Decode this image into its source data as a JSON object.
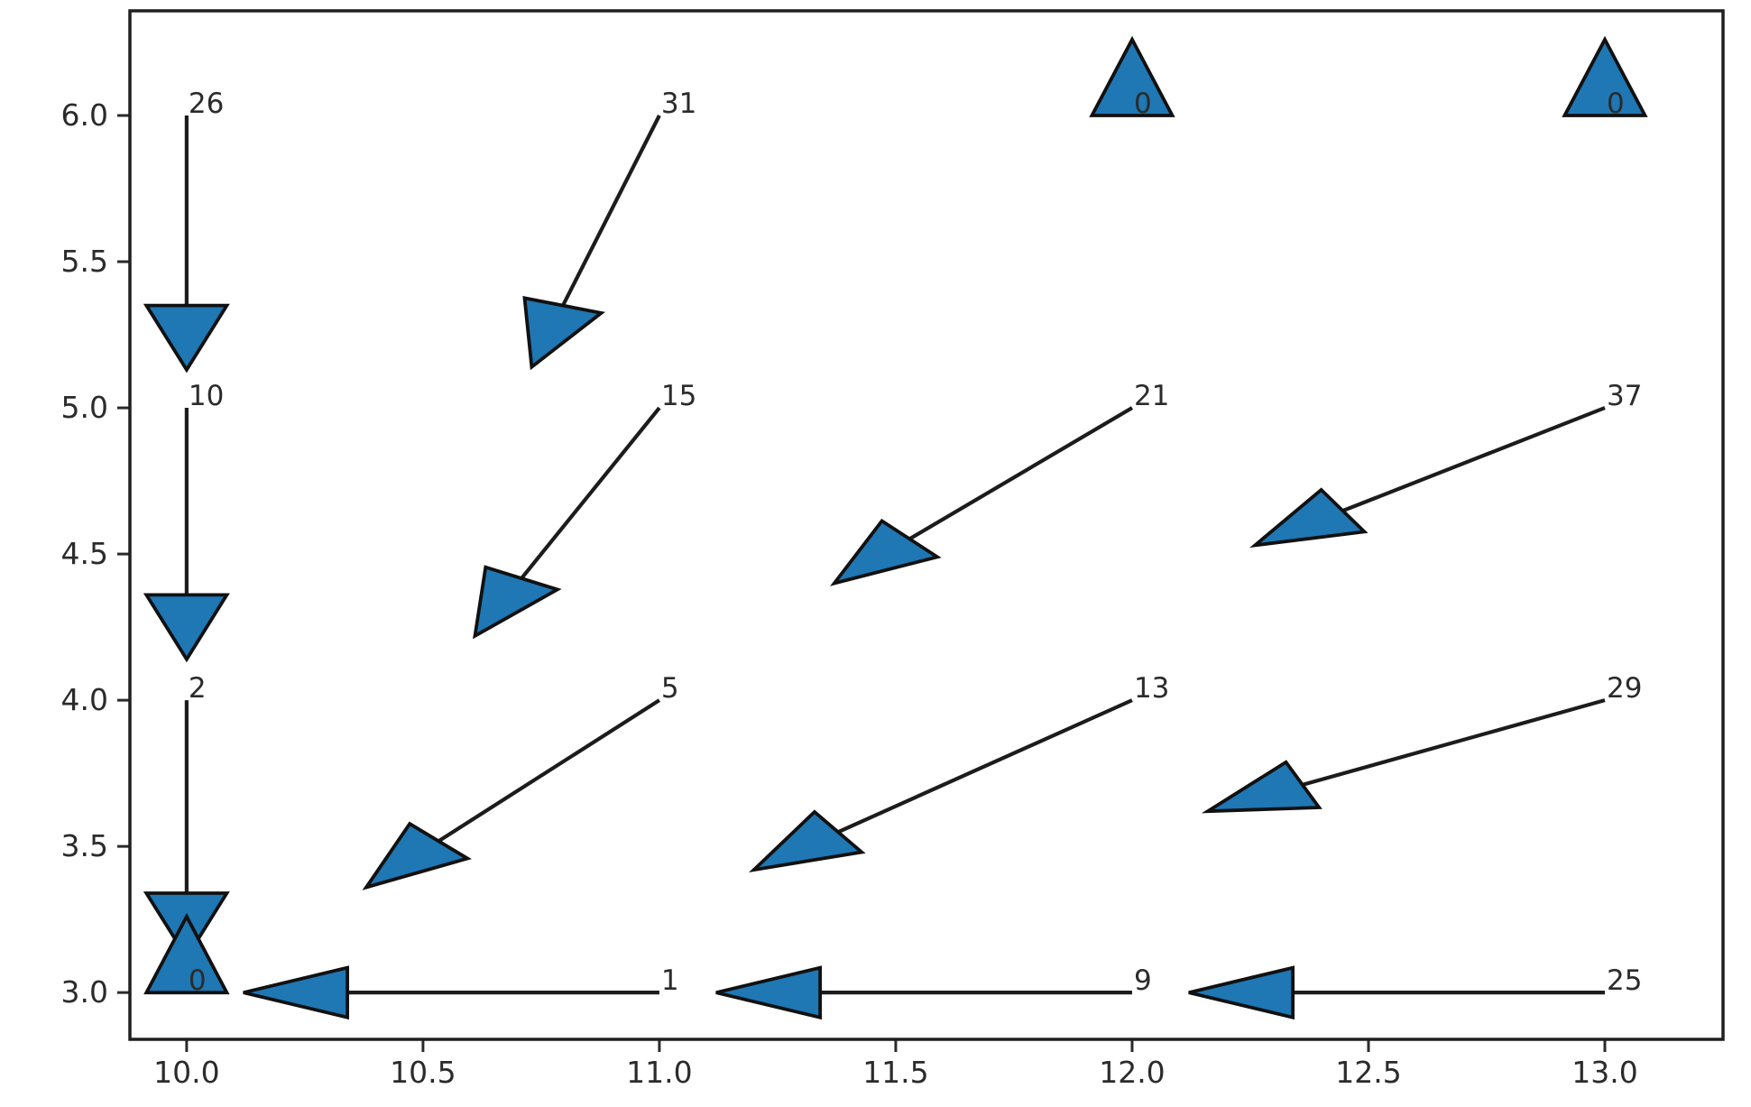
{
  "chart_data": {
    "type": "quiver",
    "title": "",
    "xlabel": "",
    "ylabel": "",
    "x_ticks": [
      10.0,
      10.5,
      11.0,
      11.5,
      12.0,
      12.5,
      13.0
    ],
    "y_ticks": [
      3.0,
      3.5,
      4.0,
      4.5,
      5.0,
      5.5,
      6.0
    ],
    "x_range": [
      9.88,
      13.25
    ],
    "y_range": [
      2.84,
      6.358
    ],
    "grid": false,
    "legend": null,
    "colors": {
      "arrow_fill": "#1f77b4",
      "arrow_edge": "#111111",
      "shaft": "#1c1c1c",
      "frame": "#1f1f1f",
      "tick": "#2b2b2b",
      "text": "#2b2b2b",
      "background": "#ffffff"
    },
    "arrows": [
      {
        "label": "26",
        "from": [
          10.0,
          6.0
        ],
        "to": [
          10.0,
          5.13
        ],
        "head_only": false
      },
      {
        "label": "31",
        "from": [
          11.0,
          6.0
        ],
        "to": [
          10.73,
          5.14
        ],
        "head_only": false
      },
      {
        "label": "0",
        "from": [
          12.0,
          6.0
        ],
        "to": [
          12.0,
          6.26
        ],
        "head_only": true
      },
      {
        "label": "0",
        "from": [
          13.0,
          6.0
        ],
        "to": [
          13.0,
          6.26
        ],
        "head_only": true
      },
      {
        "label": "10",
        "from": [
          10.0,
          5.0
        ],
        "to": [
          10.0,
          4.14
        ],
        "head_only": false
      },
      {
        "label": "15",
        "from": [
          11.0,
          5.0
        ],
        "to": [
          10.61,
          4.22
        ],
        "head_only": false
      },
      {
        "label": "21",
        "from": [
          12.0,
          5.0
        ],
        "to": [
          11.37,
          4.4
        ],
        "head_only": false
      },
      {
        "label": "37",
        "from": [
          13.0,
          5.0
        ],
        "to": [
          12.26,
          4.53
        ],
        "head_only": false
      },
      {
        "label": "2",
        "from": [
          10.0,
          4.0
        ],
        "to": [
          10.0,
          3.12
        ],
        "head_only": false
      },
      {
        "label": "5",
        "from": [
          11.0,
          4.0
        ],
        "to": [
          10.38,
          3.36
        ],
        "head_only": false
      },
      {
        "label": "13",
        "from": [
          12.0,
          4.0
        ],
        "to": [
          11.2,
          3.42
        ],
        "head_only": false
      },
      {
        "label": "29",
        "from": [
          13.0,
          4.0
        ],
        "to": [
          12.16,
          3.62
        ],
        "head_only": false
      },
      {
        "label": "0",
        "from": [
          10.0,
          3.0
        ],
        "to": [
          10.0,
          3.26
        ],
        "head_only": true
      },
      {
        "label": "1",
        "from": [
          11.0,
          3.0
        ],
        "to": [
          10.12,
          3.0
        ],
        "head_only": false
      },
      {
        "label": "9",
        "from": [
          12.0,
          3.0
        ],
        "to": [
          11.12,
          3.0
        ],
        "head_only": false
      },
      {
        "label": "25",
        "from": [
          13.0,
          3.0
        ],
        "to": [
          12.12,
          3.0
        ],
        "head_only": false
      }
    ],
    "head_geometry": {
      "length_data_units": 0.22,
      "half_width_data_units": 0.085,
      "head_only_length": 0.26
    }
  }
}
